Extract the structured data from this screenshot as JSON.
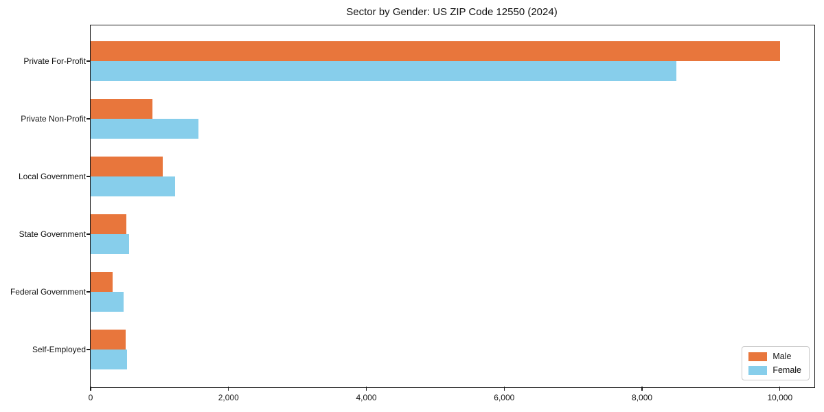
{
  "chart_data": {
    "type": "bar",
    "orientation": "horizontal",
    "title": "Sector by Gender: US ZIP Code 12550 (2024)",
    "xlabel": "",
    "ylabel": "",
    "categories": [
      "Private For-Profit",
      "Private Non-Profit",
      "Local Government",
      "State Government",
      "Federal Government",
      "Self-Employed"
    ],
    "series": [
      {
        "name": "Male",
        "color": "#e8763c",
        "values": [
          10000,
          900,
          1050,
          520,
          320,
          510
        ]
      },
      {
        "name": "Female",
        "color": "#87ceeb",
        "values": [
          8500,
          1560,
          1220,
          560,
          480,
          530
        ]
      }
    ],
    "xlim": [
      0,
      10500
    ],
    "x_ticks": [
      0,
      2000,
      4000,
      6000,
      8000,
      10000
    ],
    "x_tick_labels": [
      "0",
      "2,000",
      "4,000",
      "6,000",
      "8,000",
      "10,000"
    ],
    "grid": false,
    "legend_position": "lower right"
  }
}
